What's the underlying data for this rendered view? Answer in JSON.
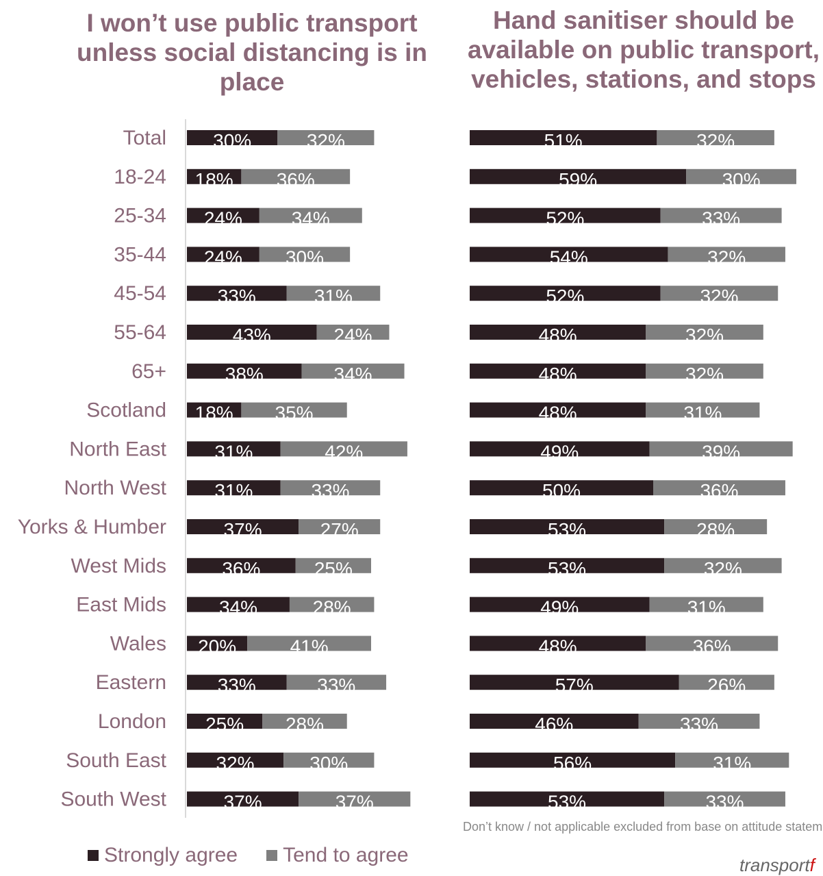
{
  "chart_data": [
    {
      "type": "bar",
      "orientation": "horizontal",
      "stacked": true,
      "title": "I won’t use public transport unless social distancing is in place",
      "categories": [
        "Total",
        "18-24",
        "25-34",
        "35-44",
        "45-54",
        "55-64",
        "65+",
        "Scotland",
        "North East",
        "North West",
        "Yorks & Humber",
        "West Mids",
        "East Mids",
        "Wales",
        "Eastern",
        "London",
        "South East",
        "South West"
      ],
      "series": [
        {
          "name": "Strongly agree",
          "values": [
            30,
            18,
            24,
            24,
            33,
            43,
            38,
            18,
            31,
            31,
            37,
            36,
            34,
            20,
            33,
            25,
            32,
            37
          ]
        },
        {
          "name": "Tend to agree",
          "values": [
            32,
            36,
            34,
            30,
            31,
            24,
            34,
            35,
            42,
            33,
            27,
            25,
            28,
            41,
            33,
            28,
            30,
            37
          ]
        }
      ],
      "legend": "bottom"
    },
    {
      "type": "bar",
      "orientation": "horizontal",
      "stacked": true,
      "title": "Hand sanitiser should be available on public transport, vehicles, stations, and stops",
      "categories": [
        "Total",
        "18-24",
        "25-34",
        "35-44",
        "45-54",
        "55-64",
        "65+",
        "Scotland",
        "North East",
        "North West",
        "Yorks & Humber",
        "West Mids",
        "East Mids",
        "Wales",
        "Eastern",
        "London",
        "South East",
        "South West"
      ],
      "series": [
        {
          "name": "Strongly agree",
          "values": [
            51,
            59,
            52,
            54,
            52,
            48,
            48,
            48,
            49,
            50,
            53,
            53,
            49,
            48,
            57,
            46,
            56,
            53
          ]
        },
        {
          "name": "Tend to agree",
          "values": [
            32,
            30,
            33,
            32,
            32,
            32,
            32,
            31,
            39,
            36,
            28,
            32,
            31,
            36,
            26,
            33,
            31,
            33
          ]
        }
      ],
      "legend": "bottom"
    }
  ],
  "legend": {
    "strong": "Strongly agree",
    "tend": "Tend to agree"
  },
  "note": "Don’t know / not applicable excluded from base on attitude statements",
  "logo": {
    "main": "transport",
    "accent": "f"
  },
  "colors": {
    "strong": "#2b1e22",
    "tend": "#7f7f7f",
    "label": "#8a6878",
    "axis": "#d9d9d9"
  }
}
